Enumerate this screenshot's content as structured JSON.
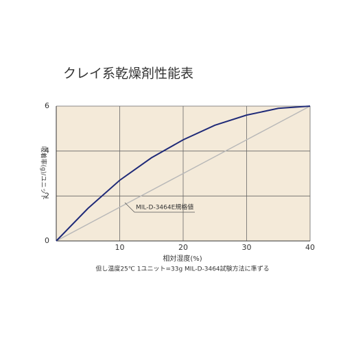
{
  "chart_data": {
    "type": "line",
    "title": "クレイ系乾燥剤性能表",
    "x_label": "相対湿度(%)",
    "y_label": "吸着率(g)/ユニット",
    "note": "但し温度25℃ 1ユニット=33g MIL-D-3464試験方法に準ずる",
    "annotation": "MIL-D-3464E規格値",
    "x": [
      0,
      5,
      10,
      15,
      20,
      25,
      30,
      35,
      40
    ],
    "series": [
      {
        "color": "#1f2a78",
        "values": [
          0,
          1.45,
          2.7,
          3.7,
          4.5,
          5.15,
          5.6,
          5.9,
          6
        ]
      },
      {
        "color": "#b8b8b8",
        "values": [
          0,
          0.75,
          1.5,
          2.25,
          3,
          3.75,
          4.5,
          5.25,
          6
        ]
      }
    ],
    "xlim": [
      0,
      40
    ],
    "ylim": [
      0,
      6
    ],
    "xticks": [
      10,
      20,
      30,
      40
    ],
    "yticks": [
      0,
      2,
      4,
      6
    ],
    "grid": true,
    "background": "#f4ead9"
  }
}
